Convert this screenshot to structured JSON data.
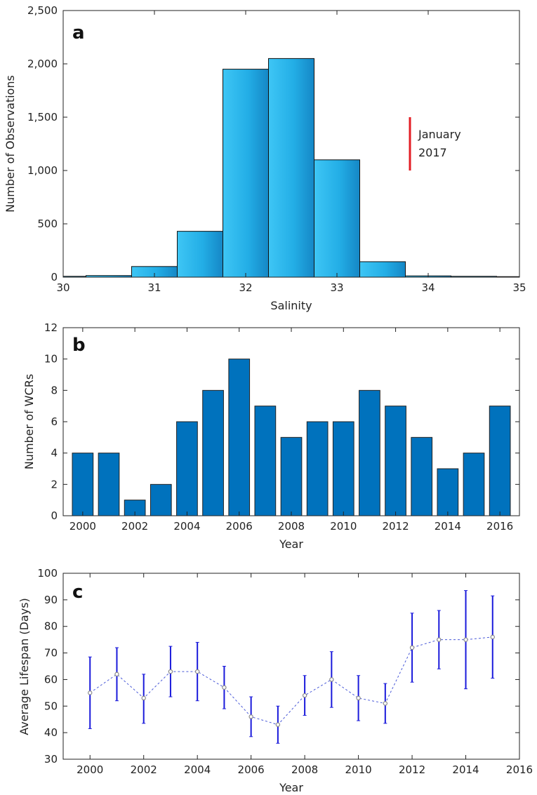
{
  "chart_data": [
    {
      "type": "bar",
      "panel_label": "a",
      "xlabel": "Salinity",
      "ylabel": "Number of Observations",
      "xlim": [
        30,
        35
      ],
      "ylim": [
        0,
        2500
      ],
      "xticks": [
        30,
        31,
        32,
        33,
        34,
        35
      ],
      "yticks": [
        0,
        500,
        1000,
        1500,
        2000,
        2500
      ],
      "ytick_labels": [
        "0",
        "500",
        "1,000",
        "1,500",
        "2,000",
        "2,500"
      ],
      "bin_edges": [
        29.75,
        30.25,
        30.75,
        31.25,
        31.75,
        32.25,
        32.75,
        33.25,
        33.75,
        34.25,
        34.75,
        35.25
      ],
      "values": [
        8,
        15,
        100,
        430,
        1950,
        2050,
        1100,
        145,
        12,
        8,
        5
      ],
      "annotation": {
        "x": 33.8,
        "y": [
          1000,
          1500
        ],
        "text_lines": [
          "January",
          "2017"
        ],
        "color": "#e31e24"
      },
      "bar_color": "#29b6ea"
    },
    {
      "type": "bar",
      "panel_label": "b",
      "xlabel": "Year",
      "ylabel": "Number of WCRs",
      "xlim": [
        1999.25,
        2016.75
      ],
      "ylim": [
        0,
        12
      ],
      "yticks": [
        0,
        2,
        4,
        6,
        8,
        10,
        12
      ],
      "xticks": [
        2000,
        2002,
        2004,
        2006,
        2008,
        2010,
        2012,
        2014,
        2016
      ],
      "categories": [
        2000,
        2001,
        2002,
        2003,
        2004,
        2005,
        2006,
        2007,
        2008,
        2009,
        2010,
        2011,
        2012,
        2013,
        2014,
        2015,
        2016
      ],
      "values": [
        4,
        4,
        1,
        2,
        6,
        8,
        10,
        7,
        5,
        6,
        6,
        8,
        7,
        5,
        3,
        4,
        7
      ],
      "bar_color": "#0072bd"
    },
    {
      "type": "line",
      "panel_label": "c",
      "xlabel": "Year",
      "ylabel": "Average Lifespan (Days)",
      "xlim": [
        1999,
        2016
      ],
      "ylim": [
        30,
        100
      ],
      "xticks": [
        2000,
        2002,
        2004,
        2006,
        2008,
        2010,
        2012,
        2014,
        2016
      ],
      "yticks": [
        30,
        40,
        50,
        60,
        70,
        80,
        90,
        100
      ],
      "x": [
        2000,
        2001,
        2002,
        2003,
        2004,
        2005,
        2006,
        2007,
        2008,
        2009,
        2010,
        2011,
        2012,
        2013,
        2014,
        2015
      ],
      "y": [
        55,
        62,
        53,
        63,
        63,
        57,
        46,
        43,
        54,
        60,
        53,
        51,
        72,
        75,
        75,
        76
      ],
      "err_lower": [
        41.5,
        52,
        43.5,
        53.5,
        52,
        49,
        38.5,
        36,
        46.5,
        49.5,
        44.5,
        43.5,
        59,
        64,
        56.5,
        60.5
      ],
      "err_upper": [
        68.5,
        72,
        62,
        72.5,
        74,
        65,
        53.5,
        50,
        61.5,
        70.5,
        61.5,
        58.5,
        85,
        86,
        93.5,
        91.5
      ],
      "line_color": "#4a5ad8",
      "errorbar_color": "#1a1adb",
      "marker_color": "#888888"
    }
  ]
}
